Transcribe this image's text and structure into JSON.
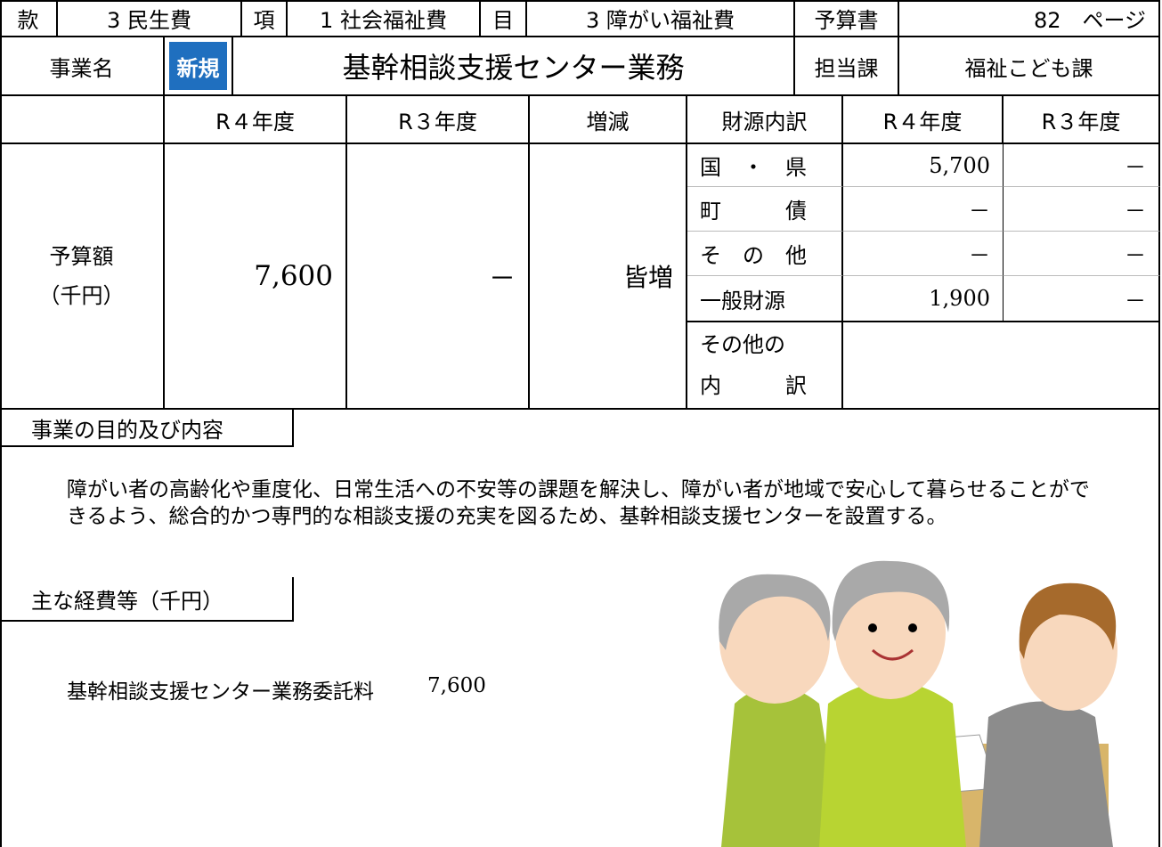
{
  "header": {
    "kan_label": "款",
    "kan": "3 民生費",
    "kou_label": "項",
    "kou": "1 社会福祉費",
    "moku_label": "目",
    "moku": "3 障がい福祉費",
    "budget_book_label": "予算書",
    "page": "82　ページ"
  },
  "project": {
    "label": "事業名",
    "badge": "新規",
    "name": "基幹相談支援センター業務",
    "dept_label": "担当課",
    "dept": "福祉こども課"
  },
  "budget": {
    "headers": [
      "R４年度",
      "R３年度",
      "増減",
      "財源内訳",
      "R４年度",
      "R３年度"
    ],
    "row_label": [
      "予算額",
      "（千円）"
    ],
    "r4": "7,600",
    "r3": "－",
    "change": "皆増",
    "sources": [
      {
        "name": "国　・　県",
        "r4": "5,700",
        "r3": "－"
      },
      {
        "name": "町　　　債",
        "r4": "－",
        "r3": "－"
      },
      {
        "name": "そ　の　他",
        "r4": "－",
        "r3": "－"
      },
      {
        "name": "一般財源",
        "r4": "1,900",
        "r3": "－"
      }
    ],
    "other_breakdown": [
      "その他の",
      "内　　　訳"
    ]
  },
  "purpose": {
    "title": "事業の目的及び内容",
    "text": "障がい者の高齢化や重度化、日常生活への不安等の課題を解決し、障がい者が地域で安心して暮らせることができるよう、総合的かつ専門的な相談支援の充実を図るため、基幹相談支援センターを設置する。"
  },
  "costs": {
    "title": "主な経費等（千円）",
    "items": [
      {
        "name": "基幹相談支援センター業務委託料",
        "amount": "7,600"
      }
    ]
  }
}
